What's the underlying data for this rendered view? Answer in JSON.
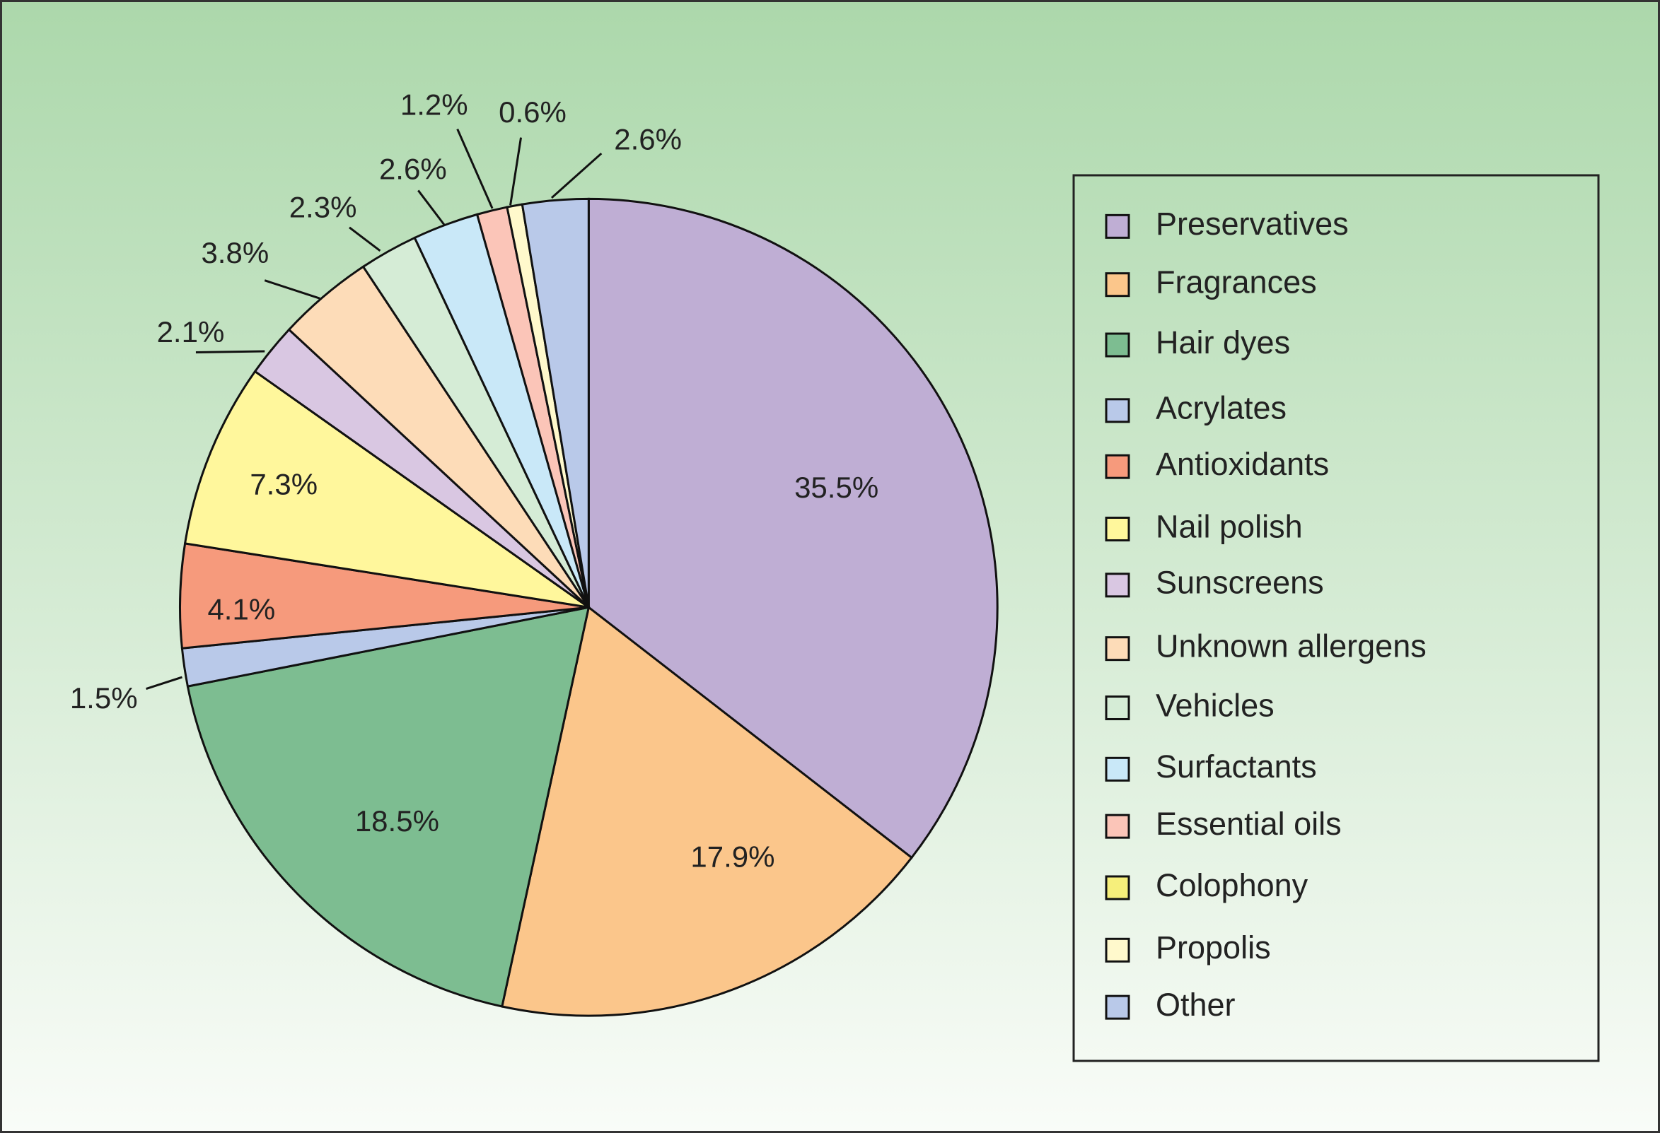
{
  "chart_data": {
    "type": "pie",
    "categories": [
      "Preservatives",
      "Fragrances",
      "Hair dyes",
      "Acrylates",
      "Antioxidants",
      "Nail polish",
      "Sunscreens",
      "Unknown allergens",
      "Vehicles",
      "Surfactants",
      "Essential oils",
      "Colophony",
      "Propolis",
      "Other"
    ],
    "values": [
      35.5,
      17.9,
      18.5,
      1.5,
      4.1,
      7.3,
      2.1,
      3.8,
      2.3,
      2.6,
      1.2,
      null,
      0.6,
      2.6
    ],
    "value_labels": [
      "35.5%",
      "17.9%",
      "18.5%",
      "1.5%",
      "4.1%",
      "7.3%",
      "2.1%",
      "3.8%",
      "2.3%",
      "2.6%",
      "1.2%",
      null,
      "0.6%",
      "2.6%"
    ],
    "colors": [
      "#bfaed4",
      "#fbc68b",
      "#7dbd91",
      "#b9c9e9",
      "#f69a7c",
      "#fff79c",
      "#d9c7e2",
      "#fddcb8",
      "#d5ecd6",
      "#c9e8f8",
      "#fbc5b8",
      "#f6ef7b",
      "#fff9cc",
      "#b9c9e9"
    ],
    "legend": "right"
  }
}
